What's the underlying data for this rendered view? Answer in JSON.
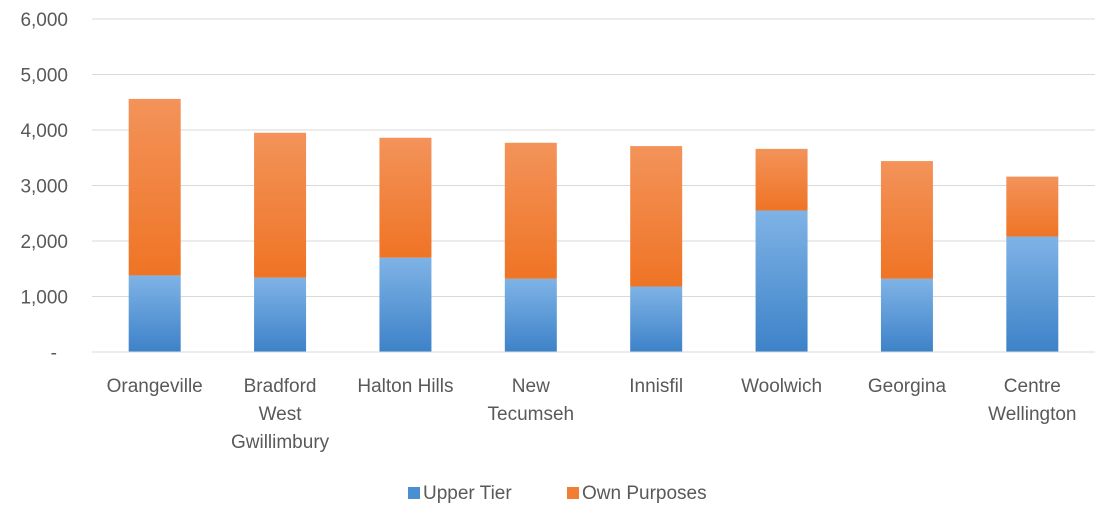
{
  "chart_data": {
    "type": "bar",
    "stacked": true,
    "categories": [
      [
        "Orangeville"
      ],
      [
        "Bradford",
        "West",
        "Gwillimbury"
      ],
      [
        "Halton Hills"
      ],
      [
        "New",
        "Tecumseh"
      ],
      [
        "Innisfil"
      ],
      [
        "Woolwich"
      ],
      [
        "Georgina"
      ],
      [
        "Centre",
        "Wellington"
      ]
    ],
    "series": [
      {
        "name": "Upper Tier",
        "color": "#4a8fd3",
        "values": [
          1380,
          1340,
          1700,
          1320,
          1180,
          2550,
          1320,
          2080
        ]
      },
      {
        "name": "Own Purposes",
        "color": "#f07f35",
        "values": [
          3180,
          2610,
          2160,
          2450,
          2530,
          1110,
          2120,
          1080
        ]
      }
    ],
    "y_ticks": [
      "-",
      "1,000",
      "2,000",
      "3,000",
      "4,000",
      "5,000",
      "6,000"
    ],
    "ylim": [
      0,
      6000
    ],
    "grid": true,
    "legend": "bottom"
  }
}
